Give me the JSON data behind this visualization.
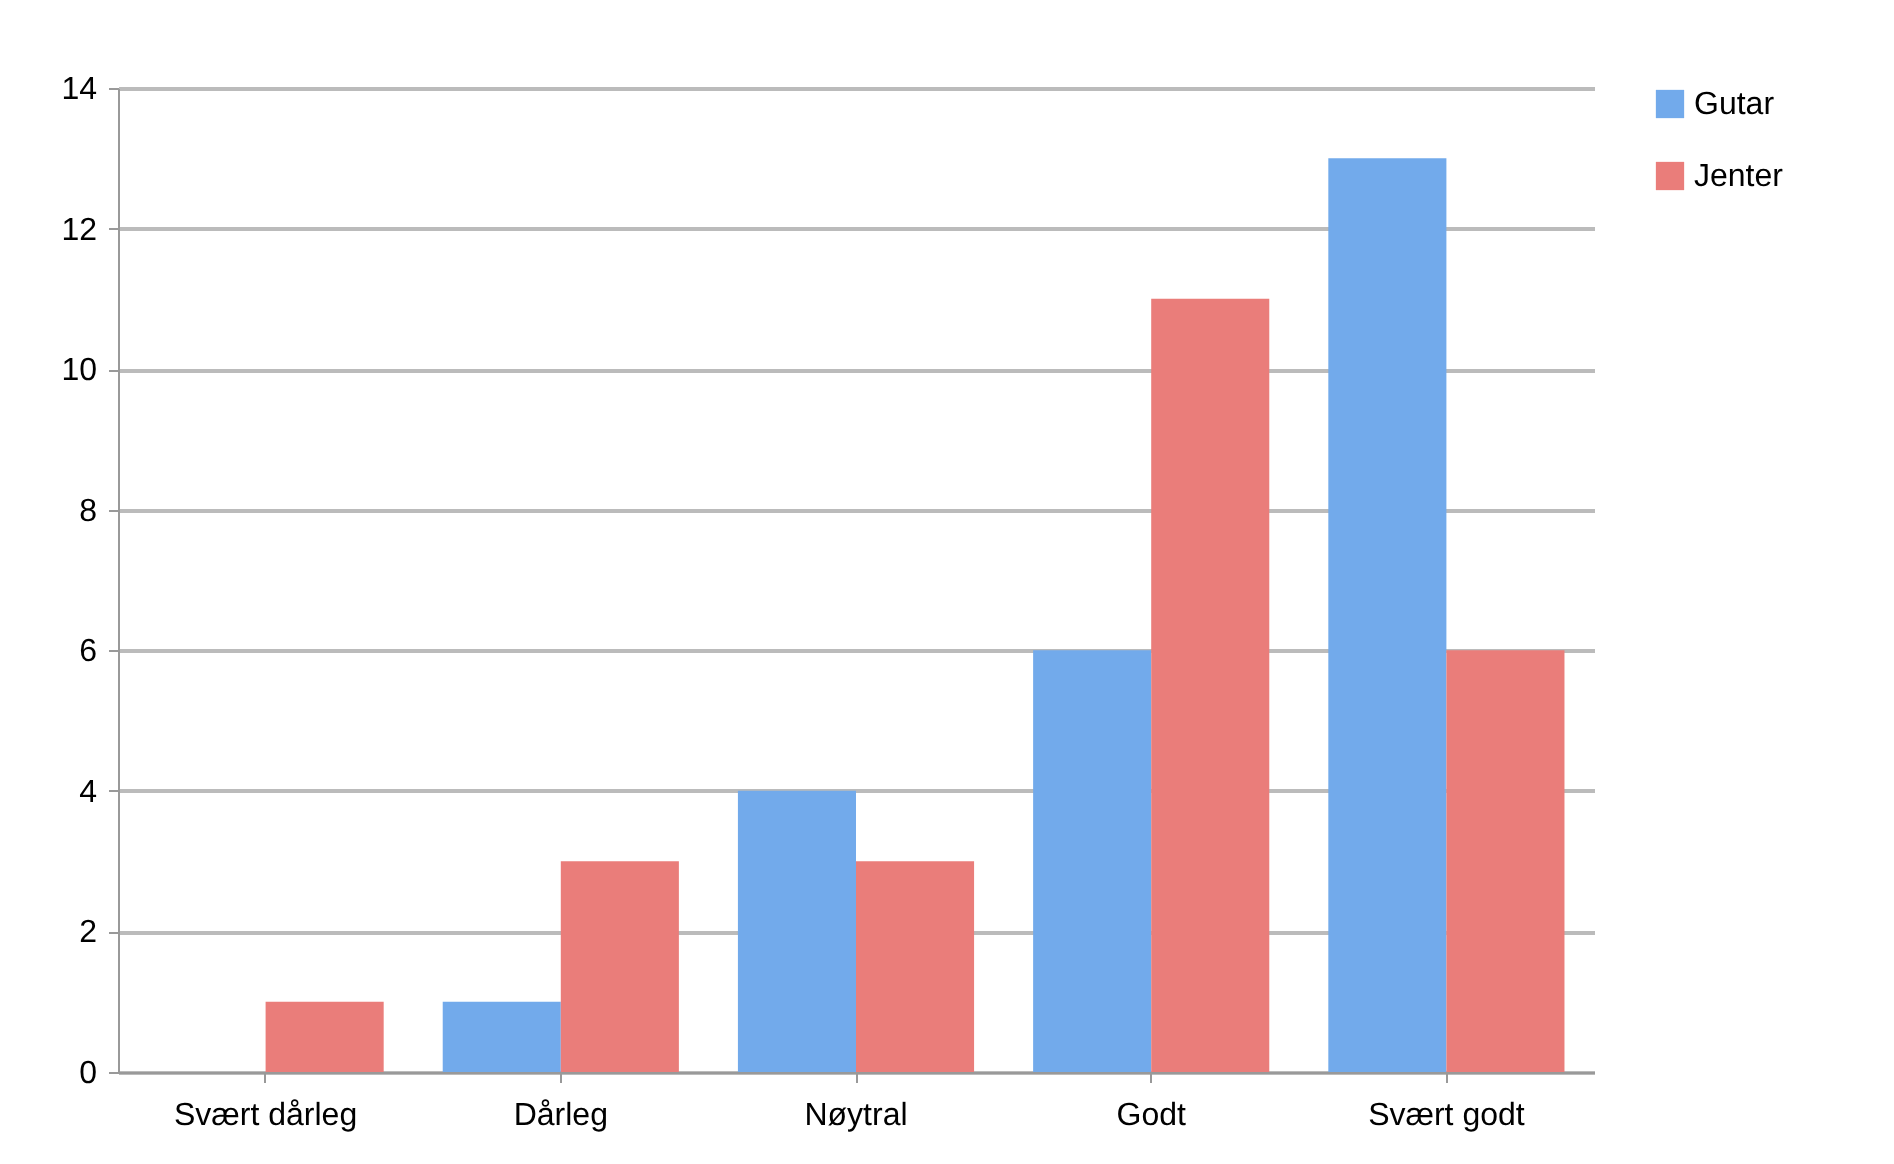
{
  "chart_data": {
    "type": "bar",
    "categories": [
      "Svært dårleg",
      "Dårleg",
      "Nøytral",
      "Godt",
      "Svært godt"
    ],
    "series": [
      {
        "name": "Gutar",
        "color": "#72aaeb",
        "values": [
          0,
          1,
          4,
          6,
          13
        ]
      },
      {
        "name": "Jenter",
        "color": "#ea7d7a",
        "values": [
          1,
          3,
          3,
          11,
          6
        ]
      }
    ],
    "ylim": [
      0,
      14
    ],
    "yticks": [
      0,
      2,
      4,
      6,
      8,
      10,
      12,
      14
    ],
    "grid": "y",
    "legend": "right"
  }
}
